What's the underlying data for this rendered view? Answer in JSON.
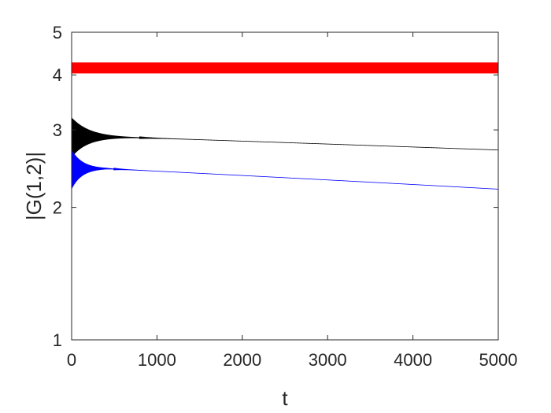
{
  "chart_data": {
    "type": "line",
    "xlabel": "t",
    "ylabel": "|G(1,2)|",
    "xlim": [
      0,
      5000
    ],
    "ylim": [
      1,
      5
    ],
    "yscale": "log",
    "x_ticks": [
      0,
      1000,
      2000,
      3000,
      4000,
      5000
    ],
    "x_tick_labels": [
      "0",
      "1000",
      "2000",
      "3000",
      "4000",
      "5000"
    ],
    "y_ticks": [
      1,
      2,
      3,
      4,
      5
    ],
    "y_tick_labels": [
      "1",
      "2",
      "3",
      "4",
      "5"
    ],
    "grid": false,
    "box": true,
    "series": [
      {
        "color": "#ff0000",
        "style": "rapid oscillation, constant envelope",
        "x": [
          0,
          5000
        ],
        "center": [
          4.15,
          4.15
        ],
        "amplitude": [
          0.12,
          0.12
        ]
      },
      {
        "color": "#000000",
        "style": "damped oscillation then slow decay",
        "x": [
          0,
          800,
          5000
        ],
        "center": [
          2.9,
          2.88,
          2.7
        ],
        "amplitude_start": 0.3,
        "damping_until": 800
      },
      {
        "color": "#0000ff",
        "style": "damped oscillation then slow decay",
        "x": [
          0,
          400,
          5000
        ],
        "center": [
          2.45,
          2.45,
          2.2
        ],
        "amplitude_start": 0.25,
        "damping_until": 500
      }
    ]
  }
}
